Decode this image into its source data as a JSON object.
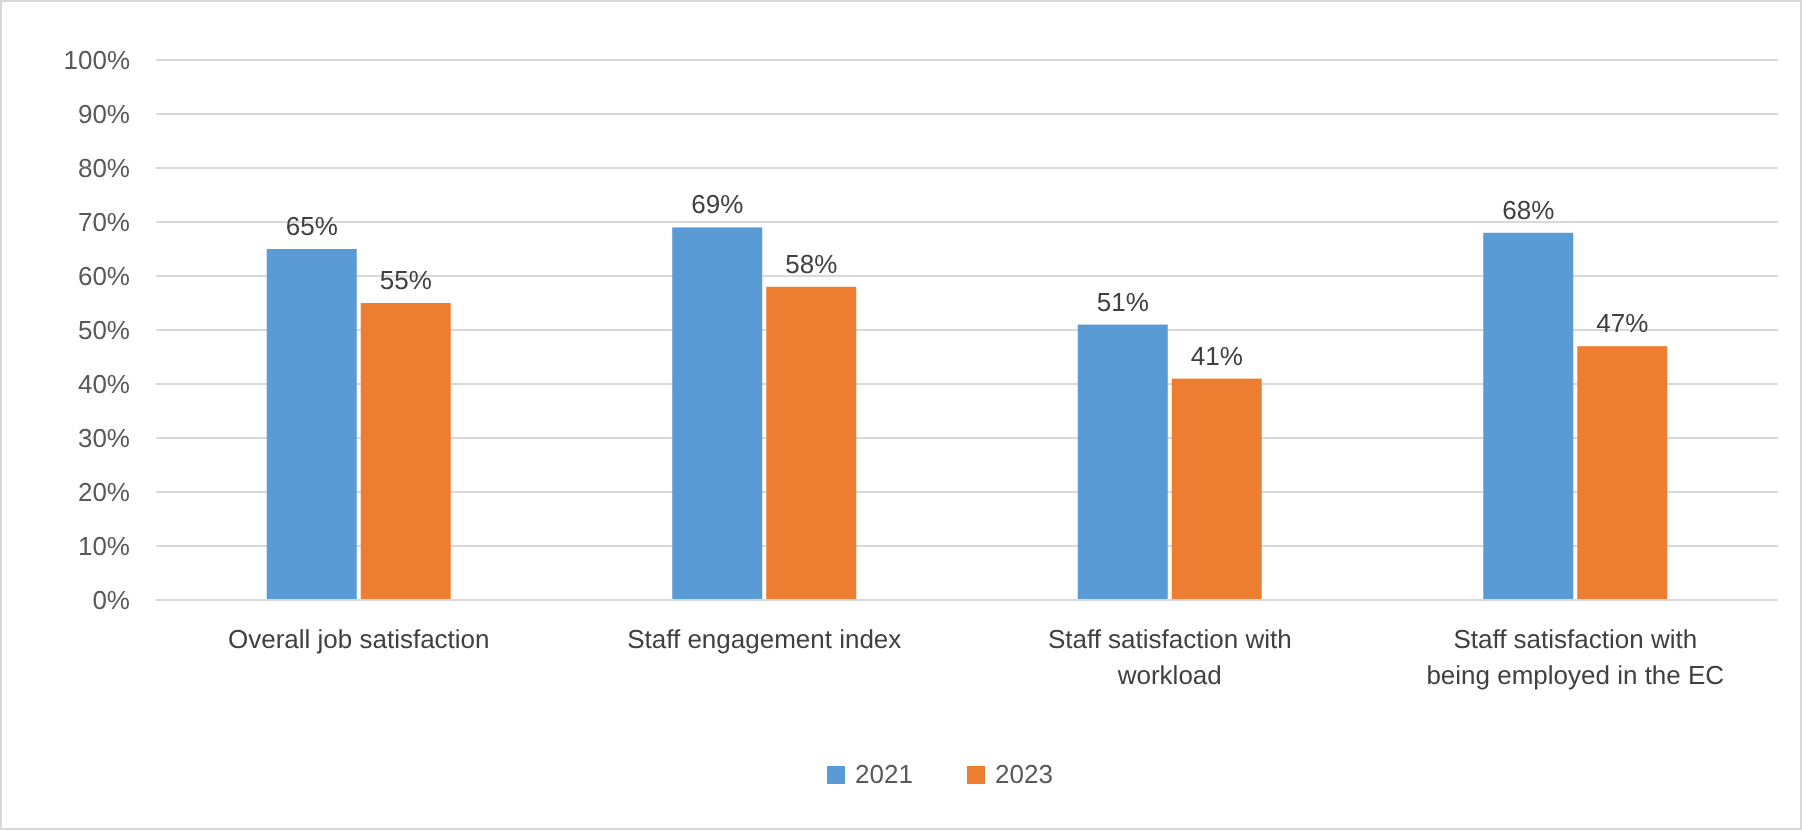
{
  "chart_data": {
    "type": "bar",
    "categories": [
      "Overall job satisfaction",
      "Staff engagement index",
      "Staff satisfaction with workload",
      "Staff satisfaction with being employed in the EC"
    ],
    "series": [
      {
        "name": "2021",
        "color": "#5b9bd5",
        "values": [
          65,
          69,
          51,
          68
        ],
        "value_labels": [
          "65%",
          "69%",
          "51%",
          "68%"
        ]
      },
      {
        "name": "2023",
        "color": "#ed7d31",
        "values": [
          55,
          58,
          41,
          47
        ],
        "value_labels": [
          "55%",
          "58%",
          "41%",
          "47%"
        ]
      }
    ],
    "ylim": [
      0,
      100
    ],
    "yticks": [
      {
        "value": 0,
        "label": "0%"
      },
      {
        "value": 10,
        "label": "10%"
      },
      {
        "value": 20,
        "label": "20%"
      },
      {
        "value": 30,
        "label": "30%"
      },
      {
        "value": 40,
        "label": "40%"
      },
      {
        "value": 50,
        "label": "50%"
      },
      {
        "value": 60,
        "label": "60%"
      },
      {
        "value": 70,
        "label": "70%"
      },
      {
        "value": 80,
        "label": "80%"
      },
      {
        "value": 90,
        "label": "90%"
      },
      {
        "value": 100,
        "label": "100%"
      }
    ],
    "grid": "y",
    "legend": "bottom"
  }
}
